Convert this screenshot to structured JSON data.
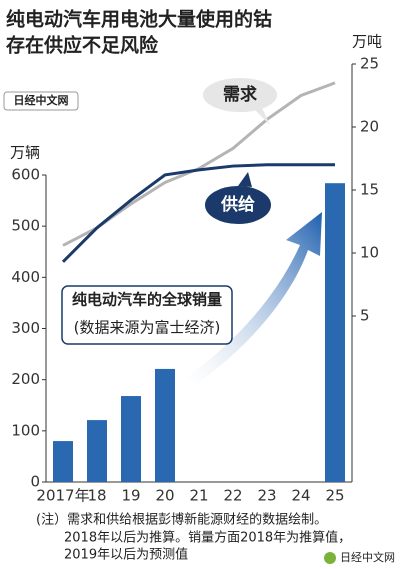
{
  "chart_data": {
    "type": "bar",
    "title": [
      "纯电动汽车用电池大量使用的钴",
      "存在供应不足风险"
    ],
    "ylabel": "万辆",
    "y2label": "万吨",
    "categories": [
      "2017年",
      "18",
      "19",
      "20",
      "21",
      "22",
      "23",
      "24",
      "25"
    ],
    "series": [
      {
        "name": "纯电动汽车的全球销量",
        "type": "bar",
        "color": "#2a68b2",
        "values": [
          80,
          121,
          168,
          221,
          null,
          null,
          null,
          null,
          584
        ]
      },
      {
        "name": "需求",
        "type": "line",
        "axis": "y2",
        "color": "#b4b4b4",
        "values": [
          10.6,
          12.0,
          13.9,
          15.6,
          16.7,
          18.3,
          20.6,
          22.5,
          23.5
        ]
      },
      {
        "name": "供给",
        "type": "line",
        "axis": "y2",
        "color": "#1b3a6b",
        "values": [
          9.3,
          12.0,
          14.2,
          16.2,
          16.6,
          16.9,
          17.0,
          17.0,
          17.0
        ]
      }
    ],
    "source": "(数据来源为富士经济)",
    "ylim": [
      0,
      600
    ],
    "yticks": [
      0,
      100,
      200,
      300,
      400,
      500,
      600
    ],
    "y2lim": [
      5,
      25
    ],
    "y2ticks": [
      5,
      10,
      15,
      20,
      25
    ],
    "notes": [
      "(注）需求和供给根据彭博新能源财经的数据绘制。",
      "2018年以后为推算。销量方面2018年为推算值，",
      "2019年以后为预测值"
    ],
    "watermark": "日经中文网"
  }
}
